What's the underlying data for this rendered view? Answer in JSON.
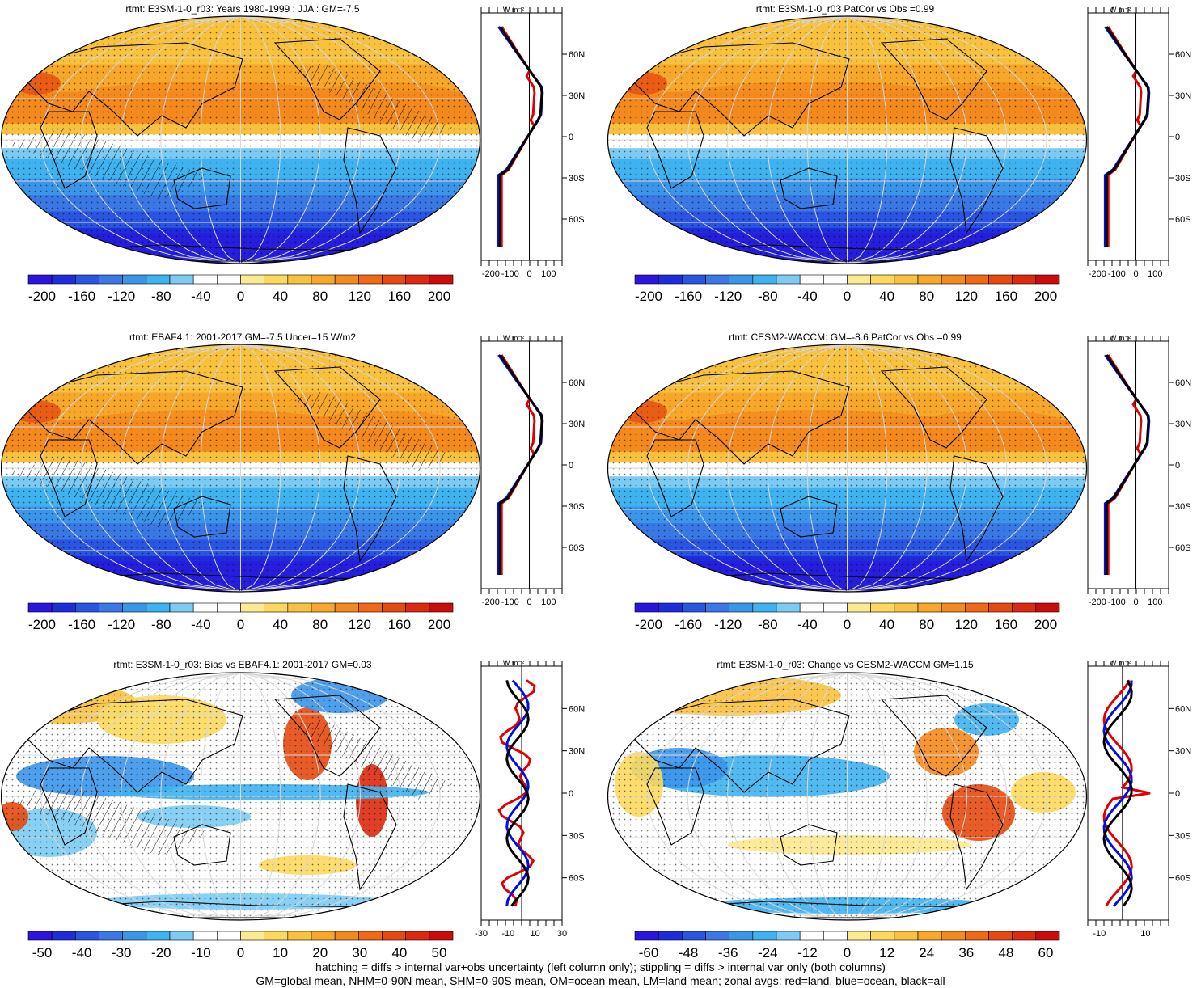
{
  "panels": [
    {
      "id": "p1",
      "title": "rtmt: E3SM-1-0_r03: Years 1980-1999 : JJA : GM=-7.5",
      "kind": "abs",
      "colorbar": {
        "labels": [
          "-200",
          "-160",
          "-120",
          "-80",
          "-40",
          "0",
          "40",
          "80",
          "120",
          "160",
          "200"
        ]
      },
      "zonal": {
        "xticks": [
          "-200",
          "-100",
          "0",
          "100"
        ],
        "lat_labels": [
          "60N",
          "30N",
          "0",
          "30S",
          "60S"
        ],
        "unit": "W m⁻²"
      }
    },
    {
      "id": "p2",
      "title": "rtmt: E3SM-1-0_r03 PatCor vs Obs =0.99",
      "kind": "abs",
      "colorbar": {
        "labels": [
          "-200",
          "-160",
          "-120",
          "-80",
          "-40",
          "0",
          "40",
          "80",
          "120",
          "160",
          "200"
        ]
      },
      "zonal": {
        "xticks": [
          "-200",
          "-100",
          "0",
          "100"
        ],
        "lat_labels": [
          "60N",
          "30N",
          "0",
          "30S",
          "60S"
        ],
        "unit": "W m⁻²"
      }
    },
    {
      "id": "p3",
      "title": "rtmt: EBAF4.1: 2001-2017 GM=-7.5 Uncer=15 W/m2",
      "kind": "abs",
      "colorbar": {
        "labels": [
          "-200",
          "-160",
          "-120",
          "-80",
          "-40",
          "0",
          "40",
          "80",
          "120",
          "160",
          "200"
        ]
      },
      "zonal": {
        "xticks": [
          "-200",
          "-100",
          "0",
          "100"
        ],
        "lat_labels": [
          "60N",
          "30N",
          "0",
          "30S",
          "60S"
        ],
        "unit": "W m⁻²"
      }
    },
    {
      "id": "p4",
      "title": "rtmt: CESM2-WACCM: GM=-8.6 PatCor vs Obs =0.99",
      "kind": "abs",
      "colorbar": {
        "labels": [
          "-200",
          "-160",
          "-120",
          "-80",
          "-40",
          "0",
          "40",
          "80",
          "120",
          "160",
          "200"
        ]
      },
      "zonal": {
        "xticks": [
          "-200",
          "-100",
          "0",
          "100"
        ],
        "lat_labels": [
          "60N",
          "30N",
          "0",
          "30S",
          "60S"
        ],
        "unit": "W m⁻²"
      }
    },
    {
      "id": "p5",
      "title": "rtmt: E3SM-1-0_r03: Bias vs EBAF4.1: 2001-2017 GM=0.03",
      "kind": "bias",
      "colorbar": {
        "labels": [
          "-50",
          "-40",
          "-30",
          "-20",
          "-10",
          "0",
          "10",
          "20",
          "30",
          "40",
          "50"
        ]
      },
      "zonal": {
        "xticks": [
          "-30",
          "-10",
          "10",
          "30"
        ],
        "lat_labels": [
          "60N",
          "30N",
          "0",
          "30S",
          "60S"
        ],
        "unit": "W m⁻²"
      }
    },
    {
      "id": "p6",
      "title": "rtmt: E3SM-1-0_r03: Change vs CESM2-WACCM GM=1.15",
      "kind": "change",
      "colorbar": {
        "labels": [
          "-60",
          "-48",
          "-36",
          "-24",
          "-12",
          "0",
          "12",
          "24",
          "36",
          "48",
          "60"
        ]
      },
      "zonal": {
        "xticks": [
          "-10",
          "10"
        ],
        "lat_labels": [
          "60N",
          "30N",
          "0",
          "30S",
          "60S"
        ],
        "unit": "W m⁻²"
      }
    }
  ],
  "palette": [
    "#2b14e0",
    "#1e2ddc",
    "#2a55e2",
    "#3a78e6",
    "#3b96ea",
    "#3fb2f0",
    "#7ccbf4",
    "#ffffff",
    "#ffffff",
    "#fde98f",
    "#fcd95e",
    "#f9c23e",
    "#f7a82a",
    "#f48a1e",
    "#ef6a12",
    "#e64a10",
    "#dc2a0e",
    "#cc0c0c"
  ],
  "footer": {
    "line1": "hatching = diffs > internal var+obs uncertainty (left column only); stippling = diffs > internal var only (both columns)",
    "line2": "GM=global mean, NHM=0-90N mean, SHM=0-90S mean, OM=ocean mean, LM=land mean; zonal avgs: red=land, blue=ocean, black=all"
  }
}
